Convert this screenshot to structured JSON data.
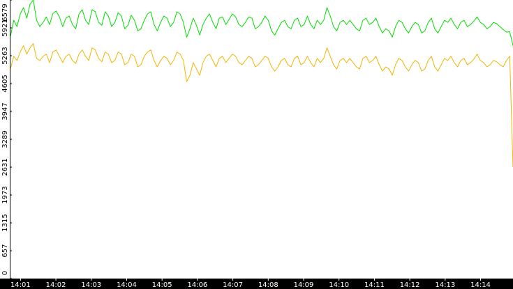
{
  "chart_data": {
    "type": "line",
    "title": "",
    "xlabel": "",
    "ylabel": "",
    "ylim": [
      0,
      6579
    ],
    "y_ticks": [
      "0",
      "657",
      "1315",
      "1973",
      "2631",
      "3289",
      "3947",
      "4605",
      "5263",
      "5921",
      "6579"
    ],
    "x_ticks": [
      "14:01",
      "14:02",
      "14:03",
      "14:04",
      "14:05",
      "14:06",
      "14:07",
      "14:08",
      "14:09",
      "14:10",
      "14:11",
      "14:12",
      "14:13",
      "14:14"
    ],
    "x_start": "14:00:43",
    "x_end": "14:14:55",
    "grid": false,
    "legend": "none",
    "series": [
      {
        "color": "#00dd00",
        "values": [
          5720,
          6100,
          5950,
          6250,
          6400,
          6150,
          6480,
          6579,
          6100,
          5950,
          6050,
          6180,
          6000,
          6260,
          6320,
          6180,
          5950,
          6150,
          6200,
          6000,
          5900,
          6250,
          6350,
          6100,
          6000,
          6350,
          6300,
          6050,
          5980,
          6300,
          6200,
          5950,
          6050,
          6280,
          6200,
          5900,
          5980,
          6220,
          6100,
          5850,
          5900,
          6100,
          6250,
          6300,
          6000,
          5850,
          6050,
          6200,
          6150,
          5950,
          6050,
          6300,
          6250,
          6050,
          5700,
          5900,
          6150,
          5980,
          5750,
          6000,
          6150,
          6250,
          6050,
          5900,
          6150,
          6180,
          6000,
          6120,
          6250,
          6180,
          6000,
          5950,
          6050,
          6180,
          6150,
          5900,
          5950,
          6050,
          6200,
          6100,
          5850,
          5750,
          5900,
          6050,
          6100,
          5950,
          5900,
          6100,
          6150,
          5950,
          6000,
          6200,
          6000,
          5900,
          6100,
          6000,
          6100,
          6400,
          6200,
          5950,
          5850,
          6050,
          6100,
          6000,
          6100,
          6000,
          5900,
          5850,
          6100,
          6150,
          6000,
          6050,
          6150,
          5950,
          5800,
          5900,
          5850,
          5700,
          5950,
          6100,
          6050,
          5900,
          5800,
          5950,
          6050,
          6000,
          5800,
          5850,
          6050,
          6150,
          5900,
          5800,
          5950,
          6100,
          6050,
          6150,
          6000,
          5900,
          6050,
          6100,
          5950,
          6000,
          6080,
          6180,
          6050,
          6000,
          5900,
          5950,
          6050,
          6020,
          5950,
          5880,
          5820,
          5830,
          5500
        ]
      },
      {
        "color": "#f0b400",
        "values": [
          4950,
          5250,
          5150,
          5350,
          5500,
          5300,
          5450,
          5550,
          5200,
          5150,
          5250,
          5300,
          5100,
          5350,
          5400,
          5250,
          5100,
          5250,
          5300,
          5150,
          5080,
          5300,
          5400,
          5250,
          5150,
          5450,
          5400,
          5200,
          5120,
          5350,
          5300,
          5100,
          5150,
          5350,
          5300,
          5050,
          5100,
          5300,
          5250,
          5000,
          5050,
          5250,
          5350,
          5400,
          5150,
          5000,
          5150,
          5250,
          5200,
          5050,
          5150,
          5350,
          5300,
          5150,
          4650,
          4800,
          5100,
          4950,
          4800,
          5100,
          5250,
          5300,
          5150,
          5000,
          5200,
          5250,
          5100,
          5200,
          5300,
          5250,
          5100,
          5050,
          5150,
          5250,
          5200,
          5000,
          5050,
          5150,
          5250,
          5200,
          5000,
          4900,
          5000,
          5150,
          5200,
          5050,
          5000,
          5200,
          5250,
          5050,
          5100,
          5250,
          5100,
          5000,
          5200,
          5100,
          5200,
          5450,
          5250,
          5050,
          4950,
          5150,
          5200,
          5100,
          5200,
          5100,
          5000,
          4950,
          5200,
          5250,
          5100,
          5150,
          5250,
          5050,
          4900,
          5000,
          4950,
          4800,
          5050,
          5200,
          5150,
          5000,
          4900,
          5050,
          5150,
          5100,
          4900,
          4950,
          5150,
          5250,
          5000,
          4900,
          5050,
          5200,
          5150,
          5250,
          5100,
          5000,
          5150,
          5200,
          5050,
          5100,
          5180,
          5300,
          5150,
          5100,
          5000,
          5050,
          5150,
          5120,
          5050,
          5000,
          5150,
          5250,
          2631
        ]
      }
    ]
  }
}
